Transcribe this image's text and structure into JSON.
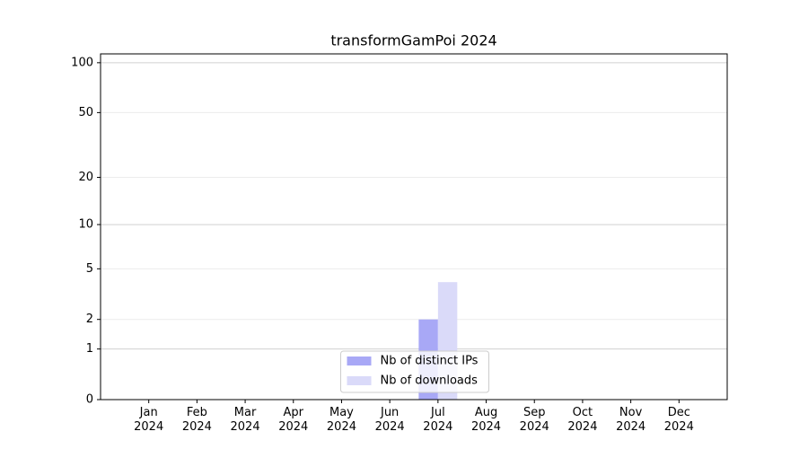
{
  "chart_data": {
    "type": "bar",
    "title": "transformGamPoi 2024",
    "categories": [
      "Jan\n2024",
      "Feb\n2024",
      "Mar\n2024",
      "Apr\n2024",
      "May\n2024",
      "Jun\n2024",
      "Jul\n2024",
      "Aug\n2024",
      "Sep\n2024",
      "Oct\n2024",
      "Nov\n2024",
      "Dec\n2024"
    ],
    "series": [
      {
        "name": "Nb of distinct IPs",
        "color": "#a8a8f6",
        "values": [
          0,
          0,
          0,
          0,
          0,
          0,
          2,
          0,
          0,
          0,
          0,
          0
        ]
      },
      {
        "name": "Nb of downloads",
        "color": "#dadaf9",
        "values": [
          0,
          0,
          0,
          0,
          0,
          0,
          4,
          0,
          0,
          0,
          0,
          0
        ]
      }
    ],
    "yscale": "log1p",
    "ylim": [
      0,
      113
    ],
    "yticks": [
      0,
      1,
      2,
      5,
      10,
      20,
      50,
      100
    ],
    "grid": true,
    "legend": "lower center"
  }
}
